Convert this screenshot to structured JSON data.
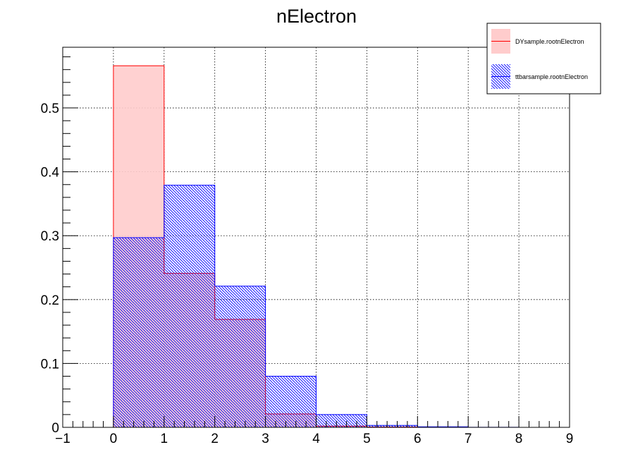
{
  "chart_data": {
    "type": "bar",
    "title": "nElectron",
    "xlabel": "",
    "ylabel": "",
    "xlim": [
      -1,
      9
    ],
    "ylim": [
      0,
      0.595
    ],
    "x_ticks": [
      -1,
      0,
      1,
      2,
      3,
      4,
      5,
      6,
      7,
      8,
      9
    ],
    "x_tick_labels": [
      "−1",
      "0",
      "1",
      "2",
      "3",
      "4",
      "5",
      "6",
      "7",
      "8",
      "9"
    ],
    "y_ticks": [
      0,
      0.1,
      0.2,
      0.3,
      0.4,
      0.5
    ],
    "y_tick_labels": [
      "0",
      "0.1",
      "0.2",
      "0.3",
      "0.4",
      "0.5"
    ],
    "grid": true,
    "legend_position": "top-right",
    "bin_edges": [
      0,
      1,
      2,
      3,
      4,
      5,
      6,
      7,
      8,
      9
    ],
    "series": [
      {
        "name": "DYsample.rootnElectron",
        "values": [
          0.566,
          0.241,
          0.169,
          0.021,
          0.002,
          0.0005,
          0,
          0,
          0
        ],
        "color": "#ff0000",
        "fill": "#ffcccc"
      },
      {
        "name": "ttbarsample.rootnElectron",
        "values": [
          0.297,
          0.379,
          0.221,
          0.08,
          0.02,
          0.003,
          0.0008,
          0.0002,
          0
        ],
        "color": "#0000ff",
        "fill": "hatch"
      }
    ]
  }
}
